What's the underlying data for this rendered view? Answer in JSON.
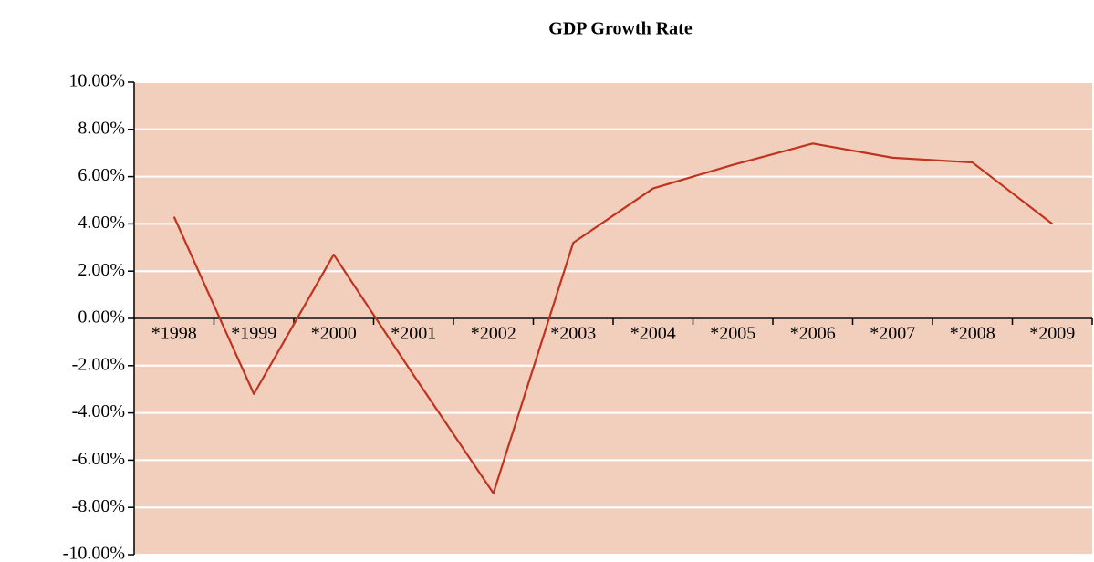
{
  "chart_data": {
    "type": "line",
    "title": "GDP Growth Rate",
    "categories": [
      "*1998",
      "*1999",
      "*2000",
      "*2001",
      "*2002",
      "*2003",
      "*2004",
      "*2005",
      "*2006",
      "*2007",
      "*2008",
      "*2009"
    ],
    "series": [
      {
        "name": "GDP Growth Rate",
        "color": "#c0341f",
        "values": [
          4.3,
          -3.2,
          2.7,
          -2.4,
          -7.4,
          3.2,
          5.5,
          6.5,
          7.4,
          6.8,
          6.6,
          4.0
        ]
      }
    ],
    "ylim": [
      -10,
      10
    ],
    "yticks": [
      {
        "value": -10,
        "label": "-10.00%"
      },
      {
        "value": -8,
        "label": "-8.00%"
      },
      {
        "value": -6,
        "label": "-6.00%"
      },
      {
        "value": -4,
        "label": "-4.00%"
      },
      {
        "value": -2,
        "label": "-2.00%"
      },
      {
        "value": 0,
        "label": "0.00%"
      },
      {
        "value": 2,
        "label": "2.00%"
      },
      {
        "value": 4,
        "label": "4.00%"
      },
      {
        "value": 6,
        "label": "6.00%"
      },
      {
        "value": 8,
        "label": "8.00%"
      },
      {
        "value": 10,
        "label": "10.00%"
      }
    ],
    "grid": true,
    "background": "#f2cfbd"
  }
}
